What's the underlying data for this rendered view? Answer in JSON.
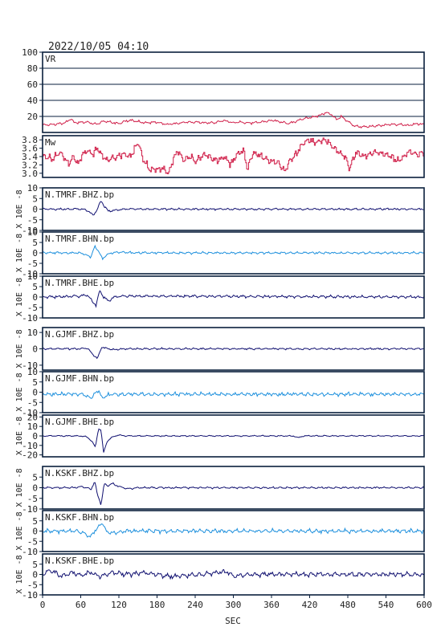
{
  "title": "2022/10/05 04:10",
  "colors": {
    "frame": "#0a1f3c",
    "vr": "#d0204a",
    "mw": "#d0204a",
    "dark": "#101070",
    "light": "#1e90dd",
    "grid": "#0a1f3c"
  },
  "chart_data": {
    "type": "line",
    "xlabel": "SEC",
    "xlim": [
      0,
      600
    ],
    "xticks": [
      "0",
      "60",
      "120",
      "180",
      "240",
      "300",
      "360",
      "420",
      "480",
      "540",
      "600"
    ],
    "panels": [
      {
        "id": "vr",
        "label": "VR",
        "ylabel": "",
        "color_key": "vr",
        "grid": true,
        "ylim": [
          0,
          100
        ],
        "yticks": [
          "100",
          "80",
          "60",
          "40",
          "20"
        ],
        "knots": [
          [
            0,
            9
          ],
          [
            20,
            10
          ],
          [
            35,
            12
          ],
          [
            45,
            17
          ],
          [
            50,
            12
          ],
          [
            70,
            13
          ],
          [
            85,
            10
          ],
          [
            95,
            14
          ],
          [
            105,
            13
          ],
          [
            120,
            11
          ],
          [
            130,
            14
          ],
          [
            140,
            15
          ],
          [
            160,
            12
          ],
          [
            180,
            13
          ],
          [
            195,
            10
          ],
          [
            210,
            11
          ],
          [
            225,
            13
          ],
          [
            240,
            13
          ],
          [
            255,
            12
          ],
          [
            270,
            12
          ],
          [
            285,
            15
          ],
          [
            300,
            12
          ],
          [
            310,
            13
          ],
          [
            320,
            12
          ],
          [
            330,
            12
          ],
          [
            345,
            13
          ],
          [
            360,
            15
          ],
          [
            372,
            14
          ],
          [
            385,
            11
          ],
          [
            395,
            13
          ],
          [
            405,
            16
          ],
          [
            415,
            18
          ],
          [
            425,
            19
          ],
          [
            438,
            22
          ],
          [
            445,
            25
          ],
          [
            455,
            22
          ],
          [
            462,
            16
          ],
          [
            470,
            20
          ],
          [
            478,
            15
          ],
          [
            490,
            8
          ],
          [
            505,
            7
          ],
          [
            525,
            8
          ],
          [
            545,
            10
          ],
          [
            560,
            10
          ],
          [
            575,
            9
          ],
          [
            590,
            11
          ],
          [
            600,
            10
          ]
        ],
        "amp": 1.6,
        "freq": 0.55
      },
      {
        "id": "mw",
        "label": "Mw",
        "ylabel": "",
        "color_key": "mw",
        "grid": false,
        "step": true,
        "ylim": [
          2.9,
          3.9
        ],
        "yticks": [
          "3.8",
          "3.6",
          "3.4",
          "3.2",
          "3.0"
        ],
        "knots": [
          [
            0,
            3.4
          ],
          [
            15,
            3.35
          ],
          [
            25,
            3.5
          ],
          [
            30,
            3.45
          ],
          [
            40,
            3.2
          ],
          [
            48,
            3.4
          ],
          [
            55,
            3.2
          ],
          [
            62,
            3.45
          ],
          [
            70,
            3.55
          ],
          [
            78,
            3.45
          ],
          [
            85,
            3.6
          ],
          [
            90,
            3.5
          ],
          [
            100,
            3.3
          ],
          [
            108,
            3.35
          ],
          [
            118,
            3.4
          ],
          [
            128,
            3.45
          ],
          [
            138,
            3.4
          ],
          [
            145,
            3.6
          ],
          [
            150,
            3.75
          ],
          [
            158,
            3.3
          ],
          [
            168,
            3.1
          ],
          [
            180,
            3.1
          ],
          [
            190,
            3.1
          ],
          [
            198,
            3.0
          ],
          [
            205,
            3.35
          ],
          [
            212,
            3.55
          ],
          [
            220,
            3.3
          ],
          [
            230,
            3.4
          ],
          [
            240,
            3.3
          ],
          [
            255,
            3.45
          ],
          [
            265,
            3.35
          ],
          [
            275,
            3.3
          ],
          [
            285,
            3.4
          ],
          [
            295,
            3.2
          ],
          [
            305,
            3.45
          ],
          [
            315,
            3.55
          ],
          [
            322,
            3.1
          ],
          [
            330,
            3.5
          ],
          [
            345,
            3.4
          ],
          [
            355,
            3.3
          ],
          [
            370,
            3.25
          ],
          [
            380,
            3.05
          ],
          [
            388,
            3.3
          ],
          [
            398,
            3.45
          ],
          [
            408,
            3.7
          ],
          [
            418,
            3.8
          ],
          [
            430,
            3.75
          ],
          [
            445,
            3.8
          ],
          [
            455,
            3.65
          ],
          [
            465,
            3.5
          ],
          [
            475,
            3.4
          ],
          [
            482,
            3.1
          ],
          [
            492,
            3.5
          ],
          [
            505,
            3.4
          ],
          [
            520,
            3.5
          ],
          [
            540,
            3.45
          ],
          [
            560,
            3.3
          ],
          [
            575,
            3.5
          ],
          [
            590,
            3.45
          ],
          [
            600,
            3.5
          ]
        ],
        "amp": 0.09,
        "freq": 0.7
      },
      {
        "id": "tmrf-bhz",
        "label": "N.TMRF.BHZ.bp",
        "ylabel": "X 10E -8",
        "color_key": "dark",
        "ylim": [
          -10,
          10
        ],
        "yticks": [
          "10",
          "5",
          "0",
          "-5",
          "-10"
        ],
        "knots": [
          [
            0,
            0
          ],
          [
            65,
            0
          ],
          [
            72,
            -1
          ],
          [
            80,
            -3
          ],
          [
            86,
            0
          ],
          [
            92,
            4
          ],
          [
            98,
            1
          ],
          [
            104,
            -1
          ],
          [
            115,
            -0.5
          ],
          [
            130,
            0
          ],
          [
            600,
            0
          ]
        ],
        "amp": 0.5,
        "freq": 0.5
      },
      {
        "id": "tmrf-bhn",
        "label": "N.TMRF.BHN.bp",
        "ylabel": "X 10E -8",
        "color_key": "light",
        "ylim": [
          -10,
          10
        ],
        "yticks": [
          "10",
          "5",
          "0",
          "-5",
          "-10"
        ],
        "knots": [
          [
            0,
            0
          ],
          [
            60,
            0
          ],
          [
            68,
            -1
          ],
          [
            76,
            -2
          ],
          [
            82,
            3
          ],
          [
            88,
            1
          ],
          [
            94,
            -3
          ],
          [
            100,
            -1
          ],
          [
            108,
            0
          ],
          [
            125,
            0.5
          ],
          [
            140,
            0
          ],
          [
            600,
            0
          ]
        ],
        "amp": 0.6,
        "freq": 0.55
      },
      {
        "id": "tmrf-bhe",
        "label": "N.TMRF.BHE.bp",
        "ylabel": "X 10E -8",
        "color_key": "dark",
        "ylim": [
          -10,
          10
        ],
        "yticks": [
          "10",
          "5",
          "0",
          "-5",
          "-10"
        ],
        "knots": [
          [
            0,
            0
          ],
          [
            60,
            0.5
          ],
          [
            70,
            1
          ],
          [
            78,
            -2
          ],
          [
            84,
            -4
          ],
          [
            90,
            3
          ],
          [
            96,
            0
          ],
          [
            104,
            -2
          ],
          [
            112,
            0
          ],
          [
            130,
            0.5
          ],
          [
            600,
            0
          ]
        ],
        "amp": 0.7,
        "freq": 0.5
      },
      {
        "id": "gjmf-bhz",
        "label": "N.GJMF.BHZ.bp",
        "ylabel": "X 10E -8",
        "color_key": "dark",
        "ylim": [
          -13,
          13
        ],
        "yticks": [
          "10",
          "0",
          "-10"
        ],
        "knots": [
          [
            0,
            0
          ],
          [
            60,
            0
          ],
          [
            70,
            0.5
          ],
          [
            78,
            -3
          ],
          [
            86,
            -6
          ],
          [
            93,
            1
          ],
          [
            100,
            0.5
          ],
          [
            110,
            -0.5
          ],
          [
            130,
            0
          ],
          [
            600,
            0
          ]
        ],
        "amp": 0.6,
        "freq": 0.5
      },
      {
        "id": "gjmf-bhn",
        "label": "N.GJMF.BHN.bp",
        "ylabel": "X 10E -8",
        "color_key": "light",
        "ylim": [
          -10,
          10
        ],
        "yticks": [
          "10",
          "5",
          "0",
          "-5",
          "-10"
        ],
        "knots": [
          [
            0,
            -1
          ],
          [
            60,
            -1
          ],
          [
            68,
            -1.5
          ],
          [
            76,
            -3
          ],
          [
            82,
            -1
          ],
          [
            88,
            1
          ],
          [
            94,
            -3
          ],
          [
            100,
            -1.5
          ],
          [
            110,
            -1
          ],
          [
            600,
            -1
          ]
        ],
        "amp": 1.0,
        "freq": 0.6
      },
      {
        "id": "gjmf-bhe",
        "label": "N.GJMF.BHE.bp",
        "ylabel": "X 10E -8",
        "color_key": "dark",
        "ylim": [
          -22,
          22
        ],
        "yticks": [
          "20",
          "10",
          "0",
          "-10",
          "-20"
        ],
        "knots": [
          [
            0,
            0
          ],
          [
            60,
            0
          ],
          [
            70,
            -1
          ],
          [
            78,
            -6
          ],
          [
            83,
            -12
          ],
          [
            88,
            8
          ],
          [
            92,
            6
          ],
          [
            96,
            -18
          ],
          [
            101,
            -6
          ],
          [
            108,
            -2
          ],
          [
            118,
            1
          ],
          [
            130,
            0
          ],
          [
            200,
            0
          ],
          [
            395,
            0
          ],
          [
            402,
            -2
          ],
          [
            410,
            0
          ],
          [
            600,
            0
          ]
        ],
        "amp": 0.7,
        "freq": 0.45
      },
      {
        "id": "kskf-bhz",
        "label": "N.KSKF.BHZ.bp",
        "ylabel": "X 10E -8",
        "color_key": "dark",
        "ylim": [
          -10,
          10
        ],
        "yticks": [
          "5",
          "0",
          "-5",
          "-10"
        ],
        "knots": [
          [
            0,
            0
          ],
          [
            50,
            0
          ],
          [
            60,
            0.5
          ],
          [
            70,
            0
          ],
          [
            76,
            -1
          ],
          [
            82,
            3
          ],
          [
            86,
            -3
          ],
          [
            92,
            -8
          ],
          [
            97,
            2
          ],
          [
            102,
            1
          ],
          [
            110,
            2
          ],
          [
            120,
            0.5
          ],
          [
            135,
            -0.5
          ],
          [
            150,
            0
          ],
          [
            600,
            0
          ]
        ],
        "amp": 0.5,
        "freq": 0.5
      },
      {
        "id": "kskf-bhn",
        "label": "N.KSKF.BHN.bp",
        "ylabel": "X 10E -8",
        "color_key": "light",
        "ylim": [
          -10,
          10
        ],
        "yticks": [
          "5",
          "0",
          "-5",
          "-10"
        ],
        "knots": [
          [
            0,
            0
          ],
          [
            55,
            0
          ],
          [
            65,
            -1
          ],
          [
            75,
            -3
          ],
          [
            82,
            0
          ],
          [
            88,
            2
          ],
          [
            94,
            4
          ],
          [
            100,
            0
          ],
          [
            108,
            -1
          ],
          [
            130,
            0
          ],
          [
            600,
            0
          ]
        ],
        "amp": 1.1,
        "freq": 0.55
      },
      {
        "id": "kskf-bhe",
        "label": "N.KSKF.BHE.bp",
        "ylabel": "X 10E -8",
        "color_key": "dark",
        "ylim": [
          -10,
          10
        ],
        "yticks": [
          "5",
          "0",
          "-5",
          "-10"
        ],
        "knots": [
          [
            0,
            0
          ],
          [
            10,
            2
          ],
          [
            20,
            1
          ],
          [
            30,
            -1
          ],
          [
            45,
            1
          ],
          [
            60,
            -0.5
          ],
          [
            75,
            1
          ],
          [
            90,
            -1
          ],
          [
            110,
            1
          ],
          [
            130,
            0
          ],
          [
            160,
            1
          ],
          [
            200,
            -1
          ],
          [
            250,
            0
          ],
          [
            290,
            1.5
          ],
          [
            300,
            -1
          ],
          [
            320,
            0
          ],
          [
            600,
            0
          ]
        ],
        "amp": 1.3,
        "freq": 0.5
      }
    ]
  }
}
